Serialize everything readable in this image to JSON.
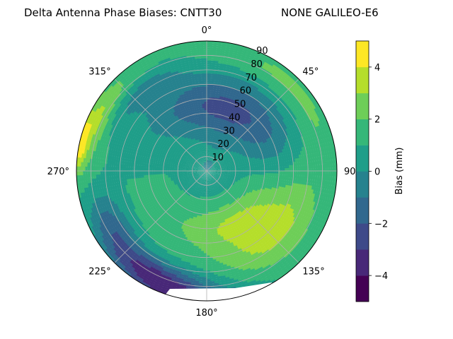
{
  "chart_data": {
    "type": "heatmap",
    "projection": "polar",
    "title_left": "Delta Antenna Phase Biases: CNTT30",
    "title_right": "NONE GALILEO-E6",
    "azimuth_tick_labels": [
      "0°",
      "45°",
      "90°",
      "135°",
      "180°",
      "225°",
      "270°",
      "315°"
    ],
    "azimuth_tick_values": [
      0,
      45,
      90,
      135,
      180,
      225,
      270,
      315
    ],
    "radial_tick_labels": [
      "10",
      "20",
      "30",
      "40",
      "50",
      "60",
      "70",
      "80",
      "90"
    ],
    "radial_tick_values": [
      10,
      20,
      30,
      40,
      50,
      60,
      70,
      80,
      90
    ],
    "radial_range": [
      0,
      90
    ],
    "grid": true,
    "colorbar": {
      "label": "Bias (mm)",
      "range": [
        -5,
        5
      ],
      "levels": [
        -5,
        -4,
        -3,
        -2,
        -1,
        0,
        1,
        2,
        3,
        4,
        5
      ],
      "tick_values": [
        -4,
        -2,
        0,
        2,
        4
      ],
      "tick_labels": [
        "−4",
        "−2",
        "0",
        "2",
        "4"
      ],
      "colormap": "viridis",
      "colors": [
        "#440154",
        "#482878",
        "#3e4a89",
        "#31688e",
        "#26828e",
        "#1f9e89",
        "#35b779",
        "#6ece58",
        "#b5de2b",
        "#fde725"
      ]
    },
    "features": [
      {
        "description_level": -2.5,
        "azimuth_center": 20,
        "zenith_center": 45,
        "azimuth_width": 60,
        "zenith_width": 20
      },
      {
        "description_level": 2.5,
        "azimuth_center": 130,
        "zenith_center": 60,
        "azimuth_width": 35,
        "zenith_width": 18
      },
      {
        "description_level": 4.5,
        "azimuth_center": 285,
        "zenith_center": 87,
        "azimuth_width": 30,
        "zenith_width": 6
      },
      {
        "description_level": -4.5,
        "azimuth_center": 180,
        "zenith_center": 88,
        "azimuth_width": 40,
        "zenith_width": 6
      }
    ]
  }
}
